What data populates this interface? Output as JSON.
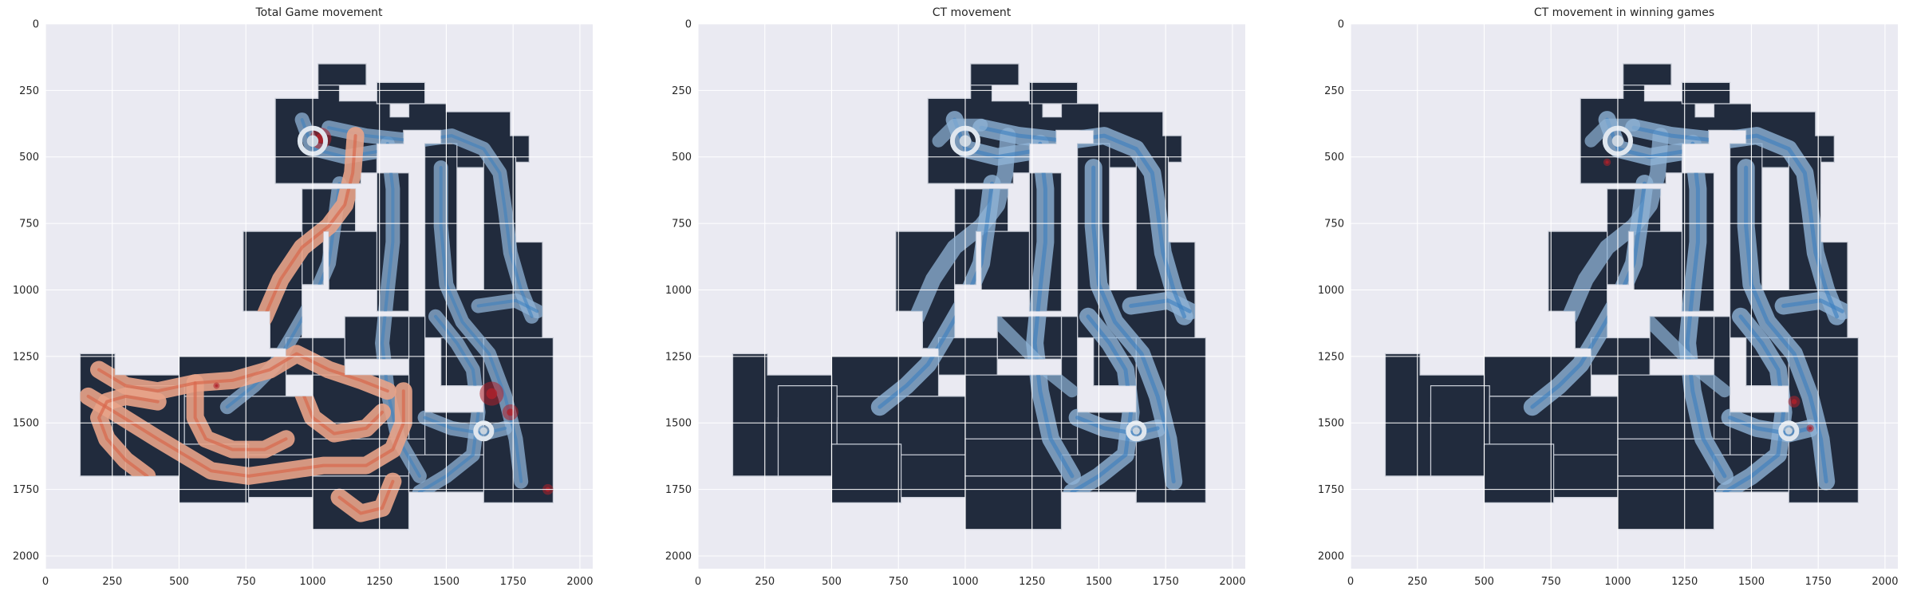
{
  "chart_data": [
    {
      "type": "heatmap",
      "title": "Total Game movement",
      "xlabel": "",
      "ylabel": "",
      "xlim": [
        0,
        2048
      ],
      "ylim": [
        2048,
        0
      ],
      "xticks": [
        0,
        250,
        500,
        750,
        1000,
        1250,
        1500,
        1750,
        2000
      ],
      "yticks": [
        0,
        250,
        500,
        750,
        1000,
        1250,
        1500,
        1750,
        2000
      ],
      "grid": true,
      "colormap": "red (T side) over blue (CT side)",
      "overlay": "t_ct"
    },
    {
      "type": "heatmap",
      "title": "CT movement",
      "xlabel": "",
      "ylabel": "",
      "xlim": [
        0,
        2048
      ],
      "ylim": [
        2048,
        0
      ],
      "xticks": [
        0,
        250,
        500,
        750,
        1000,
        1250,
        1500,
        1750,
        2000
      ],
      "yticks": [
        0,
        250,
        500,
        750,
        1000,
        1250,
        1500,
        1750,
        2000
      ],
      "grid": true,
      "colormap": "blue",
      "overlay": "ct"
    },
    {
      "type": "heatmap",
      "title": "CT movement in winning games",
      "xlabel": "",
      "ylabel": "",
      "xlim": [
        0,
        2048
      ],
      "ylim": [
        2048,
        0
      ],
      "xticks": [
        0,
        250,
        500,
        750,
        1000,
        1250,
        1500,
        1750,
        2000
      ],
      "yticks": [
        0,
        250,
        500,
        750,
        1000,
        1250,
        1500,
        1750,
        2000
      ],
      "grid": true,
      "colormap": "blue with red hotspots",
      "overlay": "ct_win"
    }
  ],
  "colors": {
    "axes_background": "#eaeaf2",
    "grid": "#ffffff",
    "map_dark": "#212b3d",
    "ct_blue": "#8fb3d6",
    "ct_blue_dark": "#3a7fc0",
    "t_salmon": "#e8a388",
    "t_red_dark": "#b0202a",
    "text": "#262626"
  }
}
